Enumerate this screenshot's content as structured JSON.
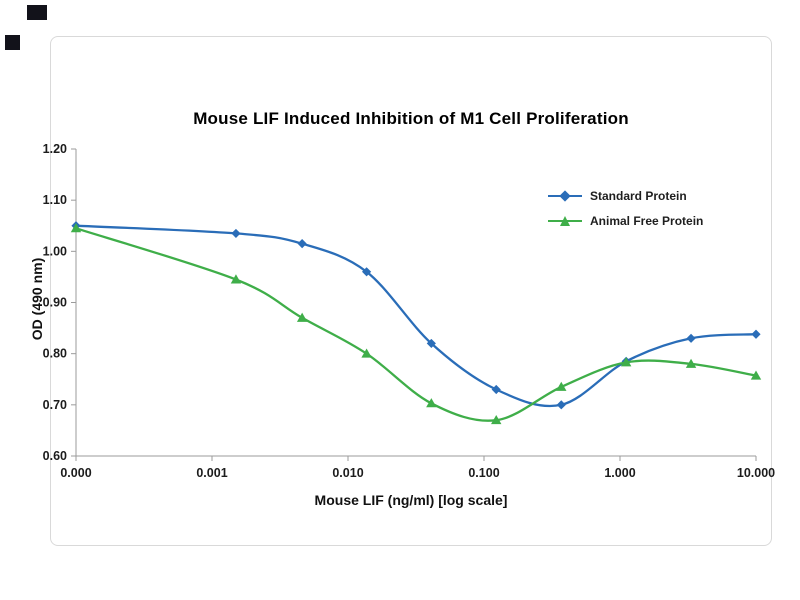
{
  "chart_data": {
    "type": "line",
    "title": "Mouse LIF Induced Inhibition of M1 Cell Proliferation",
    "xlabel": "Mouse LIF (ng/ml) [log scale]",
    "ylabel": "OD (490 nm)",
    "x_scale": "log",
    "x_axis_min": 0.0001,
    "x_axis_max": 10,
    "x_tick_labels": [
      "0.000",
      "0.001",
      "0.010",
      "0.100",
      "1.000",
      "10.000"
    ],
    "ylim": [
      0.6,
      1.2
    ],
    "y_ticks": [
      0.6,
      0.7,
      0.8,
      0.9,
      1.0,
      1.1,
      1.2
    ],
    "y_tick_labels": [
      "0.60",
      "0.70",
      "0.80",
      "0.90",
      "1.00",
      "1.10",
      "1.20"
    ],
    "grid": false,
    "legend_position": "inside-upper-right",
    "axis_color": "#9b9b9b",
    "text_color": "#1c1c1c",
    "x": [
      0,
      0.0015,
      0.0046,
      0.0137,
      0.041,
      0.123,
      0.37,
      1.11,
      3.33,
      10
    ],
    "series": [
      {
        "name": "Standard Protein",
        "marker": "diamond",
        "color": "#2a6db8",
        "values": [
          1.05,
          1.035,
          1.015,
          0.96,
          0.82,
          0.73,
          0.7,
          0.785,
          0.83,
          0.838
        ]
      },
      {
        "name": "Animal Free Protein",
        "marker": "triangle",
        "color": "#3fae49",
        "values": [
          1.045,
          0.945,
          0.87,
          0.8,
          0.703,
          0.67,
          0.735,
          0.783,
          0.78,
          0.757
        ]
      }
    ]
  }
}
